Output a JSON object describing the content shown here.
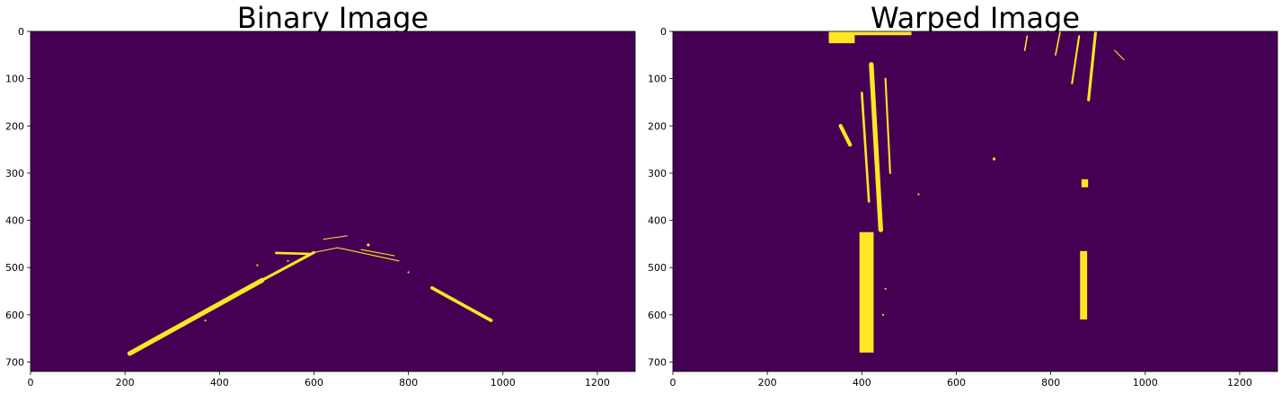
{
  "chart_data": [
    {
      "type": "heatmap",
      "title": "Binary Image",
      "xlabel": "",
      "ylabel": "",
      "xlim": [
        0,
        1280
      ],
      "ylim": [
        720,
        0
      ],
      "xticks": [
        0,
        200,
        400,
        600,
        800,
        1000,
        1200
      ],
      "yticks": [
        0,
        100,
        200,
        300,
        400,
        500,
        600,
        700
      ],
      "grid": false,
      "colormap": "viridis",
      "background_color": "#440154",
      "foreground_color": "#fde725",
      "values": [
        0,
        1
      ],
      "features": [
        {
          "kind": "line",
          "x1": 210,
          "y1": 682,
          "x2": 490,
          "y2": 527,
          "width": 10
        },
        {
          "kind": "line",
          "x1": 490,
          "y1": 527,
          "x2": 600,
          "y2": 468,
          "width": 6
        },
        {
          "kind": "line",
          "x1": 520,
          "y1": 469,
          "x2": 590,
          "y2": 471,
          "width": 5
        },
        {
          "kind": "line",
          "x1": 850,
          "y1": 543,
          "x2": 975,
          "y2": 612,
          "width": 7
        },
        {
          "kind": "line",
          "x1": 600,
          "y1": 468,
          "x2": 650,
          "y2": 458,
          "width": 2
        },
        {
          "kind": "line",
          "x1": 650,
          "y1": 458,
          "x2": 780,
          "y2": 486,
          "width": 2
        },
        {
          "kind": "line",
          "x1": 700,
          "y1": 462,
          "x2": 770,
          "y2": 475,
          "width": 2
        },
        {
          "kind": "line",
          "x1": 620,
          "y1": 440,
          "x2": 670,
          "y2": 433,
          "width": 1
        },
        {
          "kind": "dot",
          "x": 715,
          "y": 452,
          "r": 3
        },
        {
          "kind": "dot",
          "x": 800,
          "y": 510,
          "r": 2
        },
        {
          "kind": "dot",
          "x": 545,
          "y": 486,
          "r": 2
        },
        {
          "kind": "dot",
          "x": 480,
          "y": 495,
          "r": 2
        },
        {
          "kind": "dot",
          "x": 370,
          "y": 612,
          "r": 2
        }
      ]
    },
    {
      "type": "heatmap",
      "title": "Warped Image",
      "xlabel": "",
      "ylabel": "",
      "xlim": [
        0,
        1280
      ],
      "ylim": [
        720,
        0
      ],
      "xticks": [
        0,
        200,
        400,
        600,
        800,
        1000,
        1200
      ],
      "yticks": [
        0,
        100,
        200,
        300,
        400,
        500,
        600,
        700
      ],
      "grid": false,
      "colormap": "viridis",
      "background_color": "#440154",
      "foreground_color": "#fde725",
      "values": [
        0,
        1
      ],
      "features": [
        {
          "kind": "rect",
          "x": 395,
          "y": 425,
          "w": 30,
          "h": 255
        },
        {
          "kind": "rect",
          "x": 862,
          "y": 465,
          "w": 15,
          "h": 145
        },
        {
          "kind": "rect",
          "x": 330,
          "y": 0,
          "w": 55,
          "h": 25
        },
        {
          "kind": "rect",
          "x": 385,
          "y": 0,
          "w": 120,
          "h": 8
        },
        {
          "kind": "rect",
          "x": 865,
          "y": 313,
          "w": 14,
          "h": 17
        },
        {
          "kind": "line",
          "x1": 420,
          "y1": 70,
          "x2": 440,
          "y2": 420,
          "width": 10
        },
        {
          "kind": "line",
          "x1": 400,
          "y1": 130,
          "x2": 415,
          "y2": 360,
          "width": 5
        },
        {
          "kind": "line",
          "x1": 450,
          "y1": 100,
          "x2": 460,
          "y2": 300,
          "width": 4
        },
        {
          "kind": "line",
          "x1": 355,
          "y1": 200,
          "x2": 375,
          "y2": 240,
          "width": 8
        },
        {
          "kind": "line",
          "x1": 895,
          "y1": 0,
          "x2": 880,
          "y2": 145,
          "width": 6
        },
        {
          "kind": "line",
          "x1": 860,
          "y1": 10,
          "x2": 845,
          "y2": 110,
          "width": 4
        },
        {
          "kind": "line",
          "x1": 820,
          "y1": 0,
          "x2": 810,
          "y2": 50,
          "width": 3
        },
        {
          "kind": "line",
          "x1": 750,
          "y1": 10,
          "x2": 745,
          "y2": 40,
          "width": 3
        },
        {
          "kind": "line",
          "x1": 935,
          "y1": 40,
          "x2": 955,
          "y2": 60,
          "width": 2
        },
        {
          "kind": "dot",
          "x": 680,
          "y": 270,
          "r": 3
        },
        {
          "kind": "dot",
          "x": 520,
          "y": 345,
          "r": 2
        },
        {
          "kind": "dot",
          "x": 450,
          "y": 545,
          "r": 2
        },
        {
          "kind": "dot",
          "x": 445,
          "y": 600,
          "r": 2
        }
      ]
    }
  ]
}
